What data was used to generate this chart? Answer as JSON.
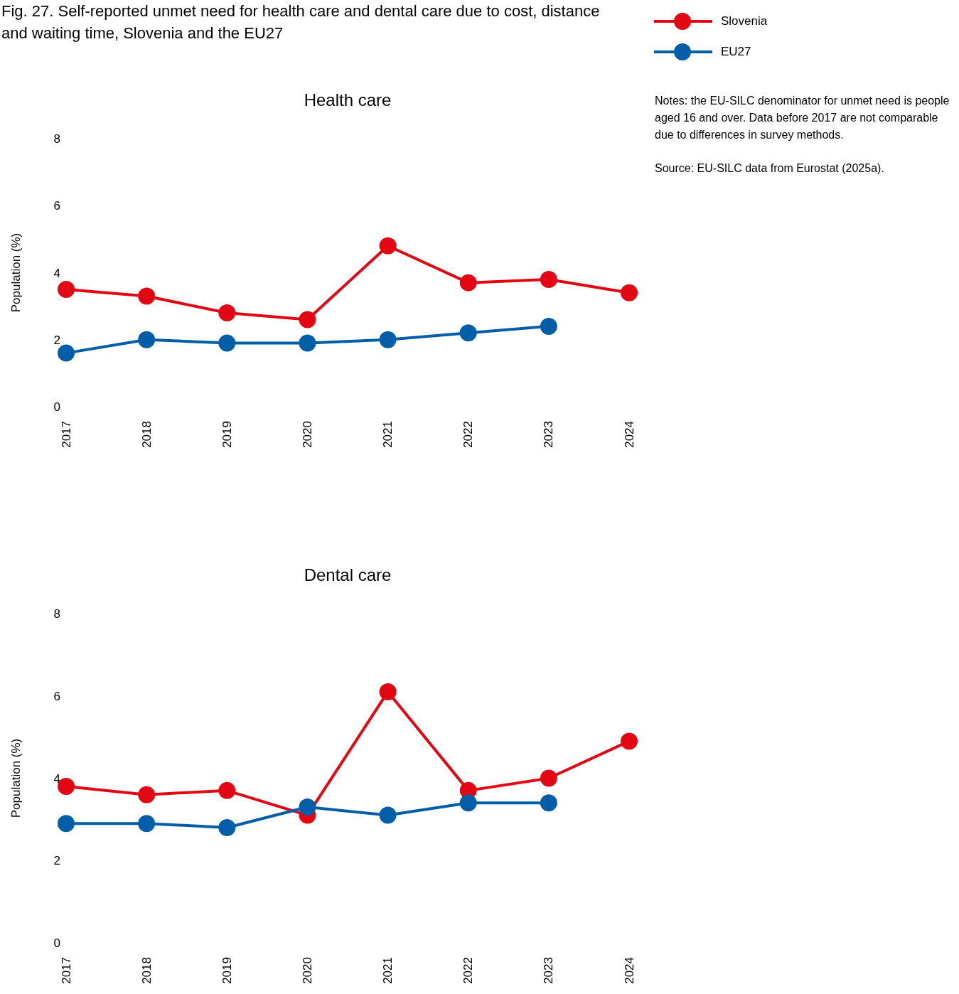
{
  "chart_data": [
    {
      "type": "line",
      "title": "Health care",
      "ylabel": "Population (%)",
      "categories": [
        "2017",
        "2018",
        "2019",
        "2020",
        "2021",
        "2022",
        "2023",
        "2024"
      ],
      "series": [
        {
          "name": "Slovenia",
          "color": "#e30613",
          "values": [
            3.5,
            3.3,
            2.8,
            2.6,
            4.8,
            3.7,
            3.8,
            3.4
          ]
        },
        {
          "name": "EU27",
          "color": "#005ea8",
          "values": [
            1.6,
            2.0,
            1.9,
            1.9,
            2.0,
            2.2,
            2.4,
            null
          ]
        }
      ],
      "ylim": [
        0,
        8
      ],
      "yticks": [
        0,
        2,
        4,
        6,
        8
      ],
      "marker": "circle",
      "line_style": "solid",
      "legend": "top right",
      "annotations": [
        "Fig. 27. Self-reported unmet need for health care and dental care due to cost, distance and waiting time, Slovenia and the EU27",
        "Notes: the EU-SILC denominator for unmet need is people aged 16 and over. Data before 2017 are not comparable due to differences in survey methods.",
        "Source: EU-SILC data from Eurostat (2025a)."
      ]
    },
    {
      "type": "line",
      "title": "Dental care",
      "ylabel": "Population (%)",
      "categories": [
        "2017",
        "2018",
        "2019",
        "2020",
        "2021",
        "2022",
        "2023",
        "2024"
      ],
      "series": [
        {
          "color": "#e30613",
          "values": [
            3.8,
            3.6,
            3.7,
            3.1,
            6.1,
            3.7,
            4.0,
            4.9
          ]
        },
        {
          "color": "#005ea8",
          "values": [
            2.9,
            2.9,
            2.8,
            3.3,
            3.1,
            3.4,
            3.4,
            null
          ]
        }
      ],
      "ylim": [
        0,
        8
      ],
      "yticks": [
        0,
        2,
        4,
        6,
        8
      ],
      "marker": "circle",
      "line_style": "solid"
    }
  ]
}
